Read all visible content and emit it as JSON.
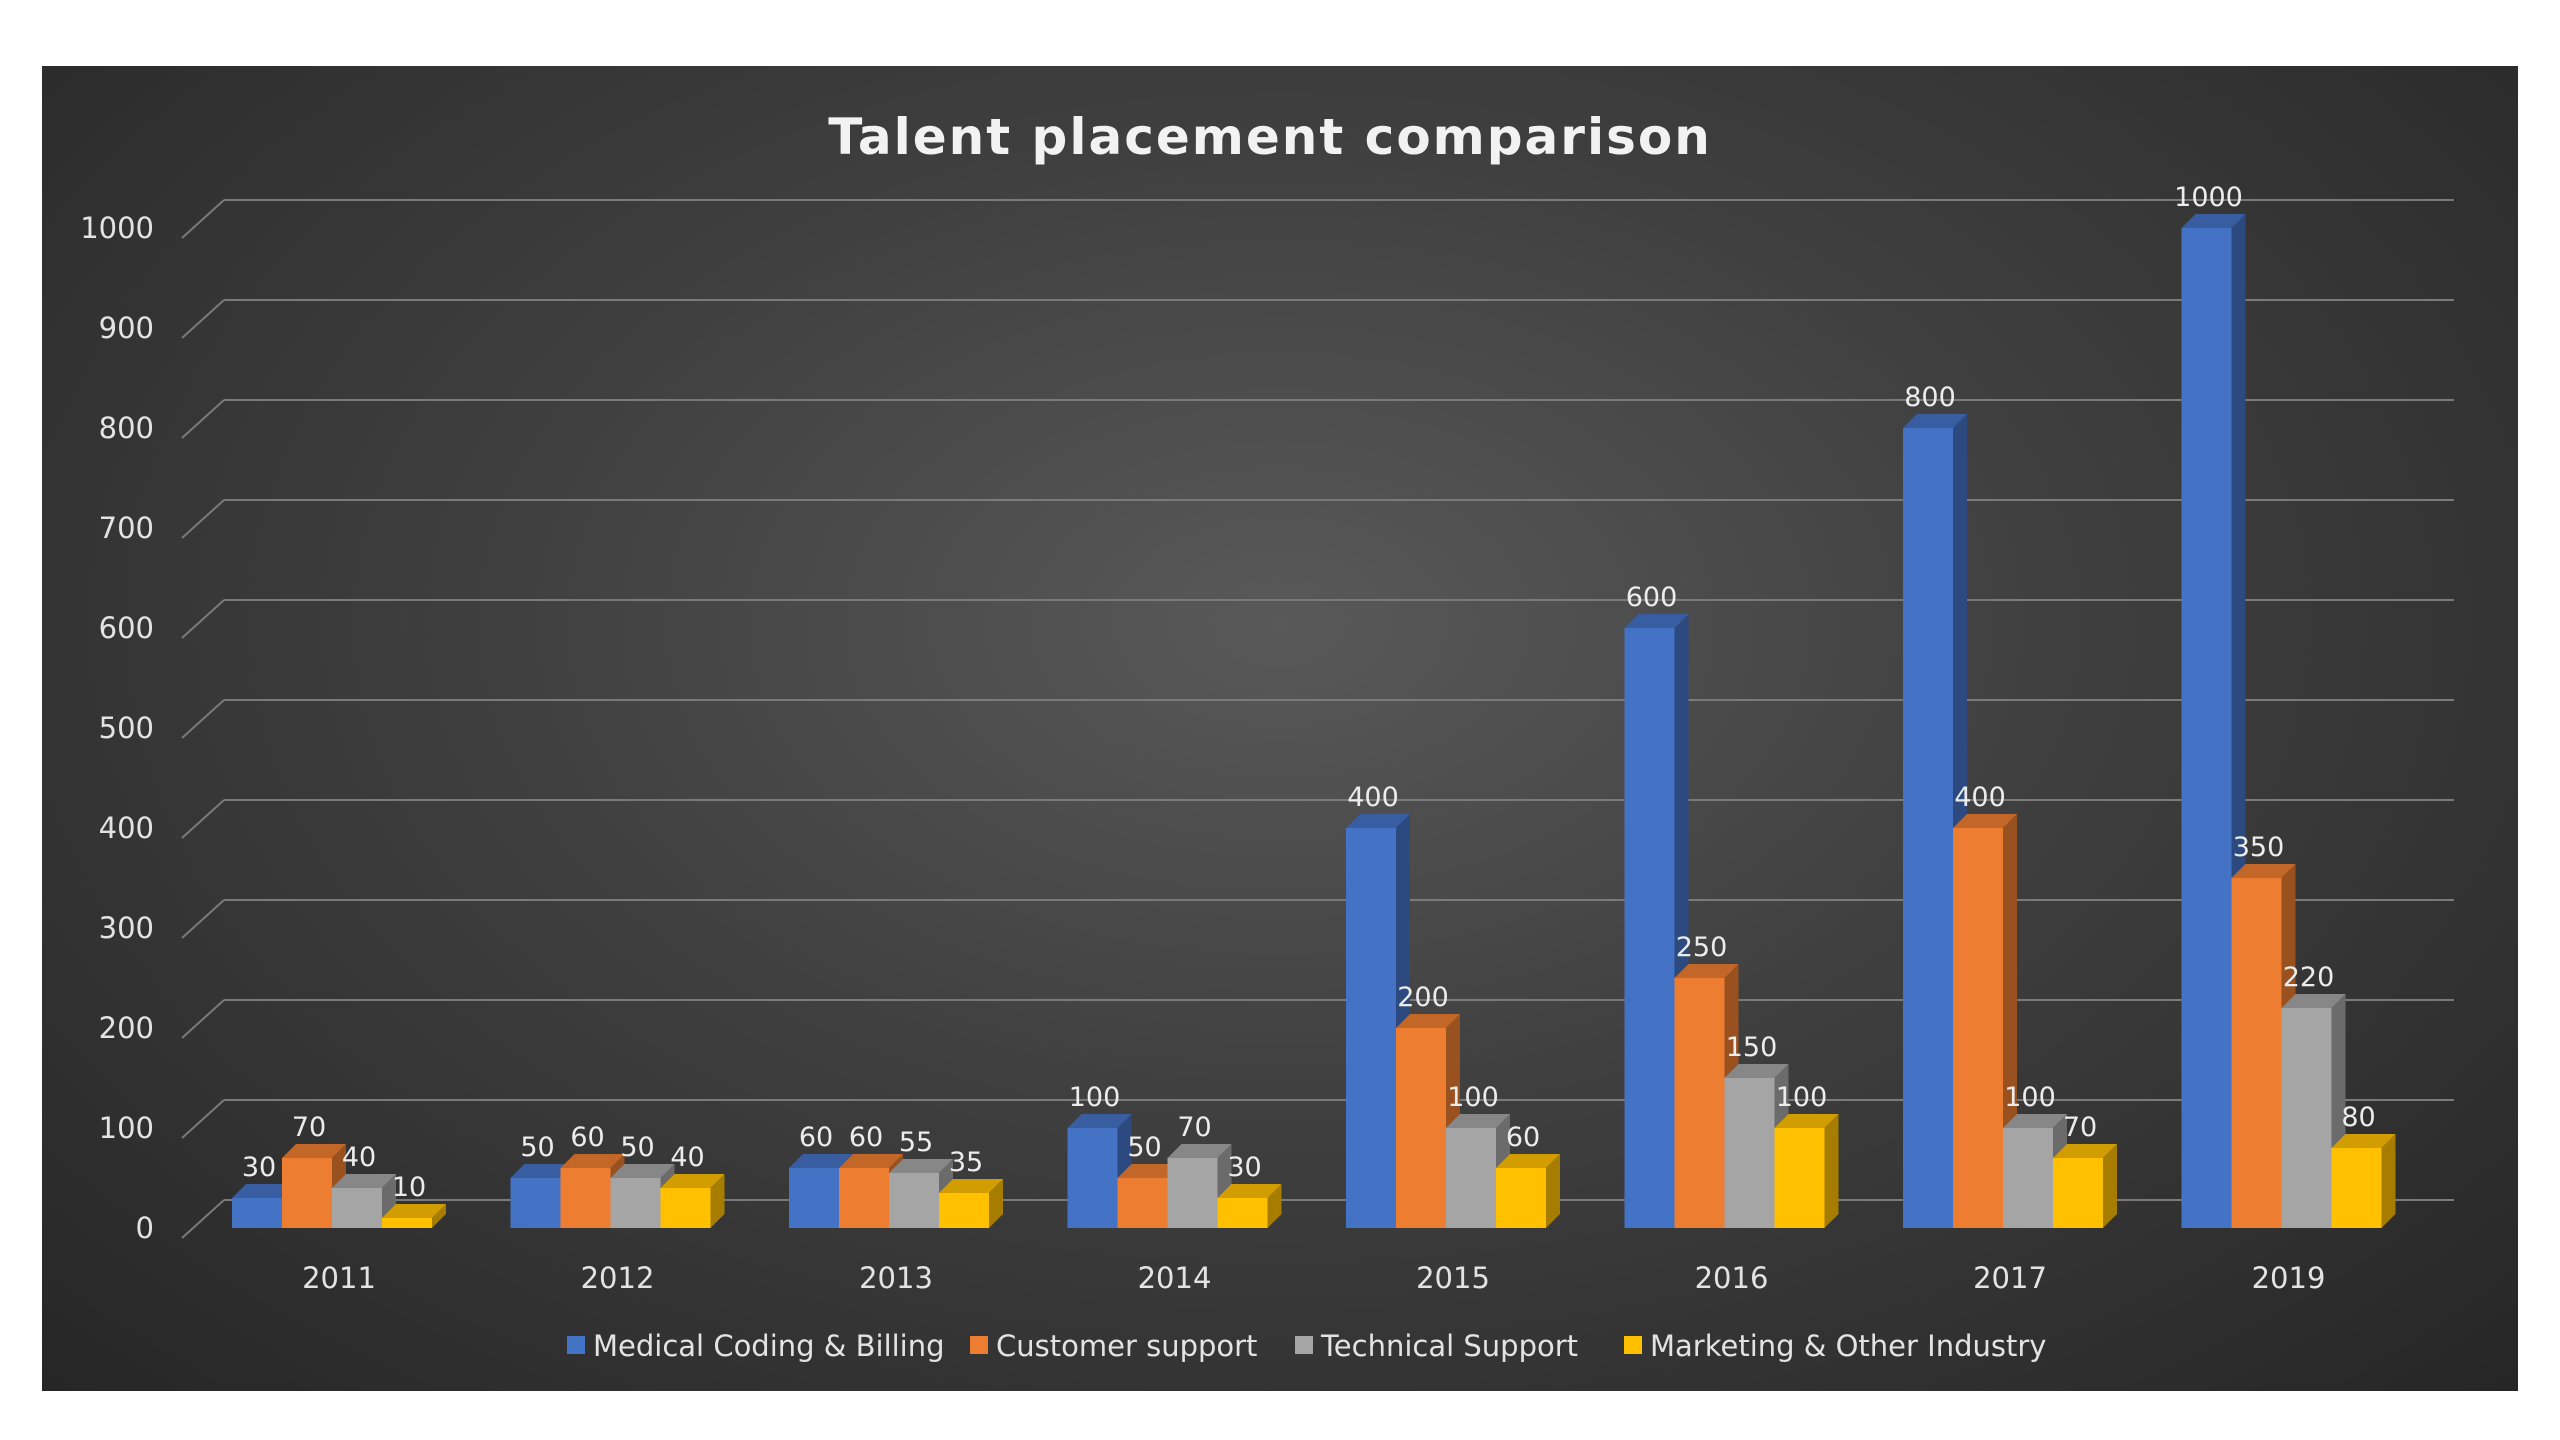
{
  "chart_data": {
    "type": "bar",
    "title": "Talent placement comparison",
    "xlabel": "",
    "ylabel": "",
    "categories": [
      "2011",
      "2012",
      "2013",
      "2014",
      "2015",
      "2016",
      "2017",
      "2019"
    ],
    "yticks": [
      0,
      100,
      200,
      300,
      400,
      500,
      600,
      700,
      800,
      900,
      1000
    ],
    "ylim": [
      0,
      1000
    ],
    "grid": true,
    "three_d": true,
    "legend_position": "bottom",
    "series": [
      {
        "name": "Medical Coding & Billing",
        "color": "#4472C4",
        "values": [
          30,
          50,
          60,
          100,
          400,
          600,
          800,
          1000
        ]
      },
      {
        "name": "Customer support",
        "color": "#ED7D31",
        "values": [
          70,
          60,
          60,
          50,
          200,
          250,
          400,
          350
        ]
      },
      {
        "name": "Technical Support",
        "color": "#A5A5A5",
        "values": [
          40,
          50,
          55,
          70,
          100,
          150,
          100,
          220
        ]
      },
      {
        "name": "Marketing & Other Industry",
        "color": "#FFC000",
        "values": [
          10,
          40,
          35,
          30,
          60,
          100,
          70,
          80
        ]
      }
    ]
  }
}
